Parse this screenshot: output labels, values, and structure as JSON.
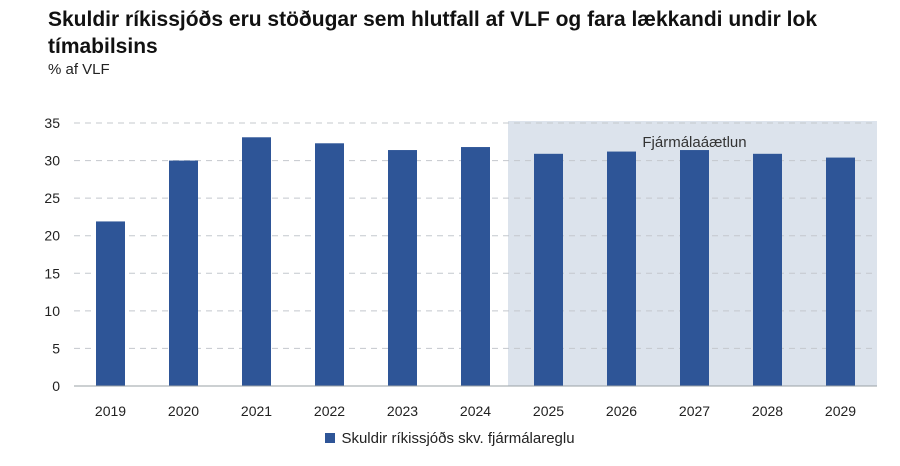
{
  "chart_data": {
    "type": "bar",
    "title": "Skuldir ríkissjóðs eru stöðugar sem hlutfall af VLF og fara lækkandi undir lok tímabilsins",
    "subtitle": "% af VLF",
    "xlabel": "",
    "ylabel": "",
    "categories": [
      "2019",
      "2020",
      "2021",
      "2022",
      "2023",
      "2024",
      "2025",
      "2026",
      "2027",
      "2028",
      "2029"
    ],
    "series": [
      {
        "name": "Skuldir ríkissjóðs skv. fjármálareglu",
        "values": [
          21.9,
          30.0,
          33.1,
          32.3,
          31.4,
          31.8,
          30.9,
          31.2,
          31.4,
          30.9,
          30.4
        ],
        "color": "#2e5597"
      }
    ],
    "ylim": [
      0,
      35
    ],
    "yticks": [
      "0",
      "5",
      "10",
      "15",
      "20",
      "25",
      "30",
      "35"
    ],
    "grid": true,
    "legend_position": "bottom-center",
    "annotation": {
      "label": "Fjármálaáætlun",
      "from_category": "2025",
      "to_category": "2029",
      "shade_color": "#dce3ec"
    }
  }
}
